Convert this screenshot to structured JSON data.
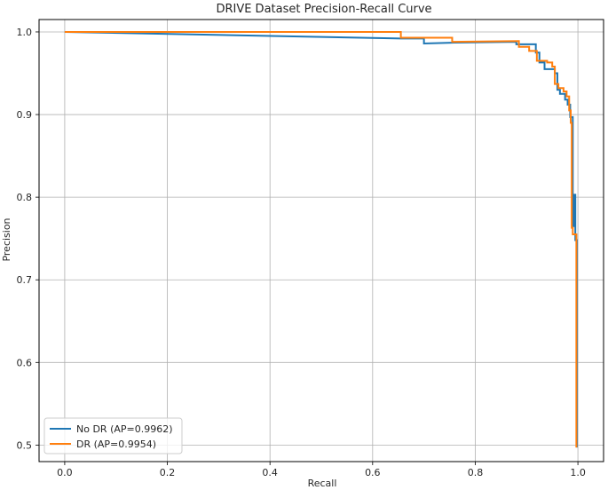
{
  "chart_data": {
    "type": "line",
    "title": "DRIVE Dataset Precision-Recall Curve",
    "xlabel": "Recall",
    "ylabel": "Precision",
    "xlim": [
      -0.05,
      1.05
    ],
    "ylim": [
      0.48,
      1.015
    ],
    "xticks": [
      0.0,
      0.2,
      0.4,
      0.6,
      0.8,
      1.0
    ],
    "xtick_labels": [
      "0.0",
      "0.2",
      "0.4",
      "0.6",
      "0.8",
      "1.0"
    ],
    "yticks": [
      0.5,
      0.6,
      0.7,
      0.8,
      0.9,
      1.0
    ],
    "ytick_labels": [
      "0.5",
      "0.6",
      "0.7",
      "0.8",
      "0.9",
      "1.0"
    ],
    "grid": true,
    "legend_position": "lower-left",
    "series": [
      {
        "name": "No DR (AP=0.9962)",
        "color": "#1f77b4",
        "points": [
          [
            0.0,
            1.0
          ],
          [
            0.655,
            0.992
          ],
          [
            0.7,
            0.992
          ],
          [
            0.7,
            0.986
          ],
          [
            0.76,
            0.987
          ],
          [
            0.88,
            0.988
          ],
          [
            0.88,
            0.985
          ],
          [
            0.918,
            0.985
          ],
          [
            0.918,
            0.975
          ],
          [
            0.925,
            0.975
          ],
          [
            0.925,
            0.963
          ],
          [
            0.935,
            0.963
          ],
          [
            0.935,
            0.955
          ],
          [
            0.955,
            0.955
          ],
          [
            0.955,
            0.95
          ],
          [
            0.96,
            0.95
          ],
          [
            0.96,
            0.93
          ],
          [
            0.965,
            0.93
          ],
          [
            0.965,
            0.925
          ],
          [
            0.975,
            0.925
          ],
          [
            0.975,
            0.918
          ],
          [
            0.98,
            0.918
          ],
          [
            0.98,
            0.912
          ],
          [
            0.985,
            0.912
          ],
          [
            0.985,
            0.897
          ],
          [
            0.99,
            0.897
          ],
          [
            0.99,
            0.765
          ],
          [
            0.993,
            0.765
          ],
          [
            0.993,
            0.803
          ],
          [
            0.995,
            0.803
          ],
          [
            0.995,
            0.748
          ],
          [
            0.998,
            0.748
          ],
          [
            0.998,
            0.497
          ]
        ]
      },
      {
        "name": "DR (AP=0.9954)",
        "color": "#ff7f0e",
        "points": [
          [
            0.0,
            1.0
          ],
          [
            0.655,
            1.0
          ],
          [
            0.655,
            0.993
          ],
          [
            0.755,
            0.993
          ],
          [
            0.755,
            0.988
          ],
          [
            0.885,
            0.989
          ],
          [
            0.885,
            0.982
          ],
          [
            0.905,
            0.982
          ],
          [
            0.905,
            0.977
          ],
          [
            0.92,
            0.977
          ],
          [
            0.92,
            0.965
          ],
          [
            0.94,
            0.965
          ],
          [
            0.94,
            0.963
          ],
          [
            0.95,
            0.963
          ],
          [
            0.95,
            0.958
          ],
          [
            0.955,
            0.958
          ],
          [
            0.955,
            0.937
          ],
          [
            0.962,
            0.937
          ],
          [
            0.962,
            0.932
          ],
          [
            0.972,
            0.932
          ],
          [
            0.972,
            0.928
          ],
          [
            0.978,
            0.928
          ],
          [
            0.978,
            0.922
          ],
          [
            0.983,
            0.922
          ],
          [
            0.983,
            0.905
          ],
          [
            0.986,
            0.905
          ],
          [
            0.986,
            0.89
          ],
          [
            0.988,
            0.89
          ],
          [
            0.988,
            0.763
          ],
          [
            0.99,
            0.763
          ],
          [
            0.99,
            0.755
          ],
          [
            0.997,
            0.755
          ],
          [
            0.997,
            0.497
          ]
        ]
      }
    ]
  }
}
